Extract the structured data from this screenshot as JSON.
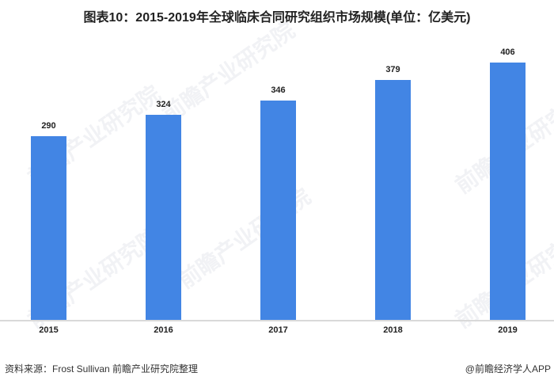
{
  "title": "图表10：2015-2019年全球临床合同研究组织市场规模(单位：亿美元)",
  "watermark": "前瞻产业研究院",
  "footer": {
    "source": "资料来源：Frost Sullivan  前瞻产业研究院整理",
    "credit": "@前瞻经济学人APP"
  },
  "colors": {
    "bar": "#4285e4",
    "axis": "#d9d9d9"
  },
  "chart_data": {
    "type": "bar",
    "title": "图表10：2015-2019年全球临床合同研究组织市场规模(单位：亿美元)",
    "categories": [
      "2015",
      "2016",
      "2017",
      "2018",
      "2019"
    ],
    "values": [
      290,
      324,
      346,
      379,
      406
    ],
    "xlabel": "",
    "ylabel": "亿美元",
    "ylim": [
      0,
      420
    ],
    "grid": false,
    "legend": null,
    "data_labels": [
      "290",
      "324",
      "346",
      "379",
      "406"
    ]
  }
}
